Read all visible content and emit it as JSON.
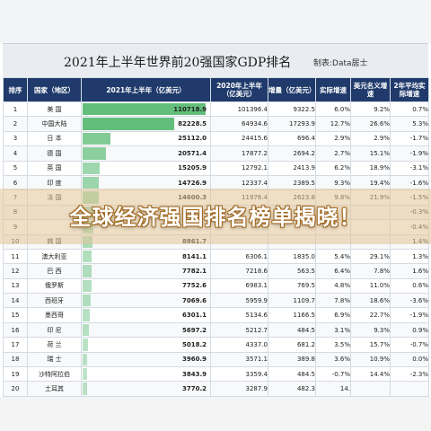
{
  "title": "2021年上半年世界前20强国家GDP排名",
  "credit": "制表:Data居士",
  "headline": "全球经济强国排名榜单揭晓！",
  "colors": {
    "header_bg": "#1f3a6b",
    "bar": "#63be7b",
    "negative": "#d23030"
  },
  "columns": [
    "排序",
    "国家（地区）",
    "2021年上半年（亿美元）",
    "2020年上半年（亿美元）",
    "增量（亿美元）",
    "实际增速",
    "美元名义增速",
    "2年平均实际增速"
  ],
  "rows": [
    {
      "rank": "1",
      "name": "美 国",
      "gdp2021": "110718.9",
      "gdp2020": "101396.4",
      "inc": "9322.5",
      "real": "6.0%",
      "nominal": "9.2%",
      "avg2": "0.7%",
      "bar": 1.0
    },
    {
      "rank": "2",
      "name": "中国大陆",
      "gdp2021": "82228.5",
      "gdp2020": "64934.6",
      "inc": "17293.9",
      "real": "12.7%",
      "nominal": "26.6%",
      "avg2": "5.3%",
      "bar": 0.743
    },
    {
      "rank": "3",
      "name": "日 本",
      "gdp2021": "25112.0",
      "gdp2020": "24415.6",
      "inc": "696.4",
      "real": "2.9%",
      "nominal": "2.9%",
      "avg2": "-1.7%",
      "bar": 0.227
    },
    {
      "rank": "4",
      "name": "德 国",
      "gdp2021": "20571.4",
      "gdp2020": "17877.2",
      "inc": "2694.2",
      "real": "2.7%",
      "nominal": "15.1%",
      "avg2": "-1.9%",
      "bar": 0.186
    },
    {
      "rank": "5",
      "name": "英 国",
      "gdp2021": "15205.9",
      "gdp2020": "12792.1",
      "inc": "2413.9",
      "real": "6.2%",
      "nominal": "18.9%",
      "avg2": "-3.1%",
      "bar": 0.137
    },
    {
      "rank": "6",
      "name": "印 度",
      "gdp2021": "14726.9",
      "gdp2020": "12337.4",
      "inc": "2389.5",
      "real": "9.3%",
      "nominal": "19.4%",
      "avg2": "-1.6%",
      "bar": 0.133
    },
    {
      "rank": "7",
      "name": "法 国",
      "gdp2021": "14600.3",
      "gdp2020": "11976.4",
      "inc": "2623.8",
      "real": "9.8%",
      "nominal": "21.9%",
      "avg2": "-1.5%",
      "bar": 0.132
    },
    {
      "rank": "8",
      "name": "",
      "gdp2021": "",
      "gdp2020": "",
      "inc": "",
      "real": "",
      "nominal": "",
      "avg2": "-0.3%",
      "bar": 0.098
    },
    {
      "rank": "9",
      "name": "",
      "gdp2021": "",
      "gdp2020": "",
      "inc": "",
      "real": "",
      "nominal": "",
      "avg2": "-0.4%",
      "bar": 0.09
    },
    {
      "rank": "10",
      "name": "韩 国",
      "gdp2021": "8861.7",
      "gdp2020": "",
      "inc": "",
      "real": "",
      "nominal": "",
      "avg2": "1.4%",
      "bar": 0.08
    },
    {
      "rank": "11",
      "name": "澳大利亚",
      "gdp2021": "8141.1",
      "gdp2020": "6306.1",
      "inc": "1835.0",
      "real": "5.4%",
      "nominal": "29.1%",
      "avg2": "1.3%",
      "bar": 0.074
    },
    {
      "rank": "12",
      "name": "巴 西",
      "gdp2021": "7782.1",
      "gdp2020": "7218.6",
      "inc": "563.5",
      "real": "6.4%",
      "nominal": "7.8%",
      "avg2": "1.6%",
      "bar": 0.07
    },
    {
      "rank": "13",
      "name": "俄罗斯",
      "gdp2021": "7752.6",
      "gdp2020": "6983.1",
      "inc": "769.5",
      "real": "4.8%",
      "nominal": "11.0%",
      "avg2": "0.6%",
      "bar": 0.07
    },
    {
      "rank": "14",
      "name": "西班牙",
      "gdp2021": "7069.6",
      "gdp2020": "5959.9",
      "inc": "1109.7",
      "real": "7.8%",
      "nominal": "18.6%",
      "avg2": "-3.6%",
      "bar": 0.064
    },
    {
      "rank": "15",
      "name": "墨西哥",
      "gdp2021": "6301.1",
      "gdp2020": "5134.6",
      "inc": "1166.5",
      "real": "6.9%",
      "nominal": "22.7%",
      "avg2": "-1.9%",
      "bar": 0.057
    },
    {
      "rank": "16",
      "name": "印 尼",
      "gdp2021": "5697.2",
      "gdp2020": "5212.7",
      "inc": "484.5",
      "real": "3.1%",
      "nominal": "9.3%",
      "avg2": "0.9%",
      "bar": 0.051
    },
    {
      "rank": "17",
      "name": "荷 兰",
      "gdp2021": "5018.2",
      "gdp2020": "4337.0",
      "inc": "681.2",
      "real": "3.5%",
      "nominal": "15.7%",
      "avg2": "-0.7%",
      "bar": 0.045
    },
    {
      "rank": "18",
      "name": "瑞 士",
      "gdp2021": "3960.9",
      "gdp2020": "3571.1",
      "inc": "389.8",
      "real": "3.6%",
      "nominal": "10.9%",
      "avg2": "0.0%",
      "bar": 0.036
    },
    {
      "rank": "19",
      "name": "沙特阿拉伯",
      "gdp2021": "3843.9",
      "gdp2020": "3359.4",
      "inc": "484.5",
      "real": "-0.7%",
      "nominal": "14.4%",
      "avg2": "-2.3%",
      "bar": 0.035
    },
    {
      "rank": "20",
      "name": "土耳其",
      "gdp2021": "3770.2",
      "gdp2020": "3287.9",
      "inc": "482.3",
      "real": "14.",
      "nominal": "",
      "avg2": "",
      "bar": 0.034
    }
  ]
}
